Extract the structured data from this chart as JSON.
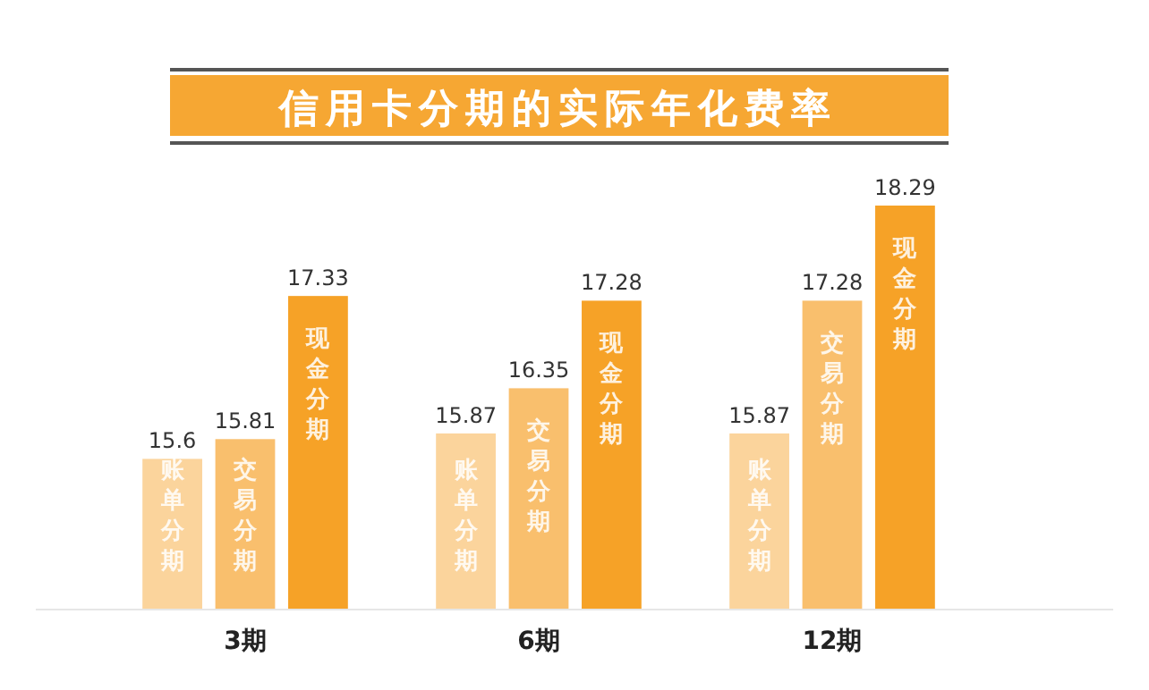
{
  "chart_data": {
    "type": "bar",
    "title": "信用卡分期的实际年化费率",
    "categories": [
      "3期",
      "6期",
      "12期"
    ],
    "series": [
      {
        "name": "账单分期",
        "color": "#fbd49c",
        "values": [
          15.6,
          15.87,
          15.87
        ]
      },
      {
        "name": "交易分期",
        "color": "#f9bf6d",
        "values": [
          15.81,
          16.35,
          17.28
        ]
      },
      {
        "name": "现金分期",
        "color": "#f6a227",
        "values": [
          17.33,
          17.28,
          18.29
        ]
      }
    ],
    "ylim": [
      14,
      18.29
    ],
    "data_labels": true,
    "tick_labels": "x"
  }
}
